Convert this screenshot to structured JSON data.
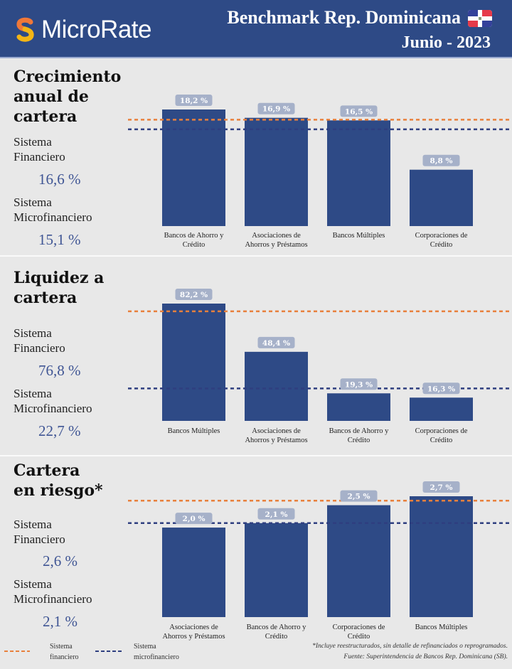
{
  "header": {
    "logo_text": "MicroRate",
    "title": "Benchmark Rep. Dominicana",
    "flag_icon": "dominican-republic-flag",
    "date": "Junio - 2023"
  },
  "colors": {
    "header_bg": "#2e4a86",
    "bar": "#2e4a86",
    "label_bg": "#a6b1c9",
    "financial_line": "#e8803c",
    "microfinance_line": "#2f3f80",
    "value_text": "#3f5594"
  },
  "sections": [
    {
      "title_lines": [
        "Crecimiento",
        "anual de",
        "cartera"
      ],
      "financiero_label": [
        "Sistema",
        "Financiero"
      ],
      "financiero_value": "16,6 %",
      "micro_label": [
        "Sistema",
        "Microfinanciero"
      ],
      "micro_value": "15,1 %"
    },
    {
      "title_lines": [
        "Liquidez a",
        "cartera"
      ],
      "financiero_label": [
        "Sistema",
        "Financiero"
      ],
      "financiero_value": "76,8 %",
      "micro_label": [
        "Sistema",
        "Microfinanciero"
      ],
      "micro_value": "22,7 %"
    },
    {
      "title_lines": [
        "Cartera",
        "en riesgo*"
      ],
      "financiero_label": [
        "Sistema",
        "Financiero"
      ],
      "financiero_value": "2,6 %",
      "micro_label": [
        "Sistema",
        "Microfinanciero"
      ],
      "micro_value": "2,1 %"
    }
  ],
  "chart_data": [
    {
      "type": "bar",
      "title": "Crecimiento anual de cartera",
      "categories": [
        [
          "Bancos de Ahorro y",
          "Crédito"
        ],
        [
          "Asociaciones de",
          "Ahorros y Préstamos"
        ],
        [
          "Bancos Múltiples"
        ],
        [
          "Corporaciones de",
          "Crédito"
        ]
      ],
      "values": [
        18.2,
        16.9,
        16.5,
        8.8
      ],
      "value_labels": [
        "18,2 %",
        "16,9 %",
        "16,5 %",
        "8,8 %"
      ],
      "reference_lines": [
        {
          "name": "Sistema financiero",
          "value": 16.6
        },
        {
          "name": "Sistema microfinanciero",
          "value": 15.1
        }
      ],
      "ylim": [
        0,
        20
      ],
      "unit": "%",
      "grid": false
    },
    {
      "type": "bar",
      "title": "Liquidez a cartera",
      "categories": [
        [
          "Bancos Múltiples"
        ],
        [
          "Asociaciones de",
          "Ahorros y Préstamos"
        ],
        [
          "Bancos de Ahorro y",
          "Crédito"
        ],
        [
          "Corporaciones de",
          "Crédito"
        ]
      ],
      "values": [
        82.2,
        48.4,
        19.3,
        16.3
      ],
      "value_labels": [
        "82,2 %",
        "48,4 %",
        "19,3 %",
        "16,3 %"
      ],
      "reference_lines": [
        {
          "name": "Sistema financiero",
          "value": 76.8
        },
        {
          "name": "Sistema microfinanciero",
          "value": 22.7
        }
      ],
      "ylim": [
        0,
        90
      ],
      "unit": "%",
      "grid": false
    },
    {
      "type": "bar",
      "title": "Cartera en riesgo*",
      "categories": [
        [
          "Asociaciones de",
          "Ahorros y Préstamos"
        ],
        [
          "Bancos de Ahorro y",
          "Crédito"
        ],
        [
          "Corporaciones de",
          "Crédito"
        ],
        [
          "Bancos Múltiples"
        ]
      ],
      "values": [
        2.0,
        2.1,
        2.5,
        2.7
      ],
      "value_labels": [
        "2,0 %",
        "2,1 %",
        "2,5 %",
        "2,7 %"
      ],
      "reference_lines": [
        {
          "name": "Sistema financiero",
          "value": 2.6
        },
        {
          "name": "Sistema microfinanciero",
          "value": 2.1
        }
      ],
      "ylim": [
        0,
        3
      ],
      "unit": "%",
      "grid": false
    }
  ],
  "legend": {
    "financiero": [
      "Sistema",
      "financiero"
    ],
    "micro": [
      "Sistema",
      "microfinanciero"
    ],
    "placement": "bottom-left"
  },
  "footnotes": {
    "note": "*Incluye reestructurados, sin detalle de refinanciados o reprogramados.",
    "source": "Fuente: Superintendencia de Bancos Rep. Dominicana (SB)."
  }
}
